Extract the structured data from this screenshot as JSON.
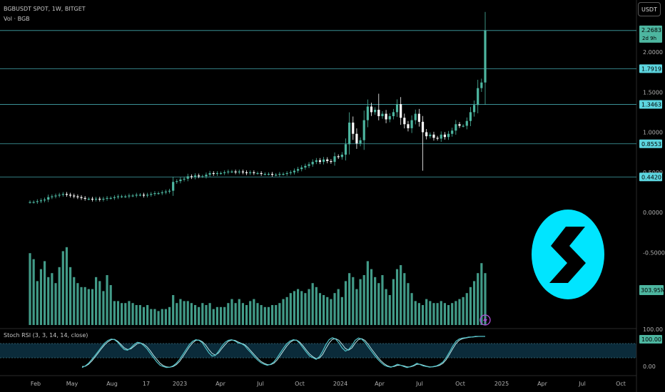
{
  "header": {
    "symbol_line": "BGBUSDT SPOT, 1W, BITGET",
    "volume_label": "Vol · BGB",
    "currency_button": "USDT"
  },
  "colors": {
    "background": "#000000",
    "up": "#4db6a0",
    "down": "#ffffff",
    "volume": "#4db6a0",
    "level_line": "#4fc3c9",
    "price_tag": "#5dd6e0",
    "stoch_k": "#4fc3c9",
    "stoch_d": "#b8e6ea",
    "logo": "#00e5ff",
    "axis_text": "#b0b0b0"
  },
  "logo": {
    "icon": "bitget-logo-icon"
  },
  "stoch_rsi_label": "Stoch RSI (3, 3, 14, 14, close)",
  "price_axis": {
    "ticks": [
      "2.0000",
      "1.5000",
      "1.0000",
      "0.5000",
      "0.0000",
      "-0.5000"
    ],
    "current_price": "2.2683",
    "countdown": "2d 9h",
    "volume_tag": "303.95M",
    "stoch_ticks": [
      "100.00",
      "0.00"
    ],
    "stoch_current": "100.00"
  },
  "time_axis": [
    "Feb",
    "May",
    "Aug",
    "17",
    "2023",
    "Apr",
    "Jul",
    "Oct",
    "2024",
    "Apr",
    "Jul",
    "Oct",
    "2025",
    "Apr",
    "Jul",
    "Oct"
  ],
  "chart_data": {
    "type": "candlestick",
    "interval": "1W",
    "price_range": [
      -0.5,
      2.5
    ],
    "horizontal_levels": [
      {
        "label": "2.2683",
        "value": 2.2683
      },
      {
        "label": "1.7919",
        "value": 1.7919
      },
      {
        "label": "1.3463",
        "value": 1.3463
      },
      {
        "label": "0.8553",
        "value": 0.8553
      },
      {
        "label": "0.4420",
        "value": 0.442
      }
    ],
    "close": [
      0.13,
      0.13,
      0.14,
      0.15,
      0.16,
      0.19,
      0.2,
      0.21,
      0.22,
      0.23,
      0.22,
      0.21,
      0.2,
      0.19,
      0.18,
      0.17,
      0.17,
      0.16,
      0.17,
      0.16,
      0.17,
      0.18,
      0.18,
      0.19,
      0.2,
      0.2,
      0.2,
      0.21,
      0.21,
      0.22,
      0.22,
      0.21,
      0.22,
      0.23,
      0.24,
      0.24,
      0.25,
      0.26,
      0.27,
      0.38,
      0.39,
      0.41,
      0.42,
      0.45,
      0.44,
      0.46,
      0.45,
      0.45,
      0.47,
      0.49,
      0.48,
      0.49,
      0.49,
      0.5,
      0.51,
      0.51,
      0.5,
      0.51,
      0.5,
      0.49,
      0.5,
      0.49,
      0.49,
      0.48,
      0.48,
      0.48,
      0.47,
      0.47,
      0.48,
      0.48,
      0.49,
      0.5,
      0.52,
      0.54,
      0.56,
      0.58,
      0.6,
      0.63,
      0.65,
      0.63,
      0.66,
      0.64,
      0.63,
      0.7,
      0.69,
      0.72,
      0.85,
      1.12,
      0.98,
      0.86,
      0.9,
      1.15,
      1.32,
      1.25,
      1.28,
      1.2,
      1.23,
      1.16,
      1.2,
      1.25,
      1.35,
      1.18,
      1.1,
      1.05,
      1.15,
      1.23,
      1.13,
      1.0,
      0.95,
      0.97,
      0.93,
      0.92,
      0.97,
      0.94,
      0.98,
      1.02,
      1.1,
      1.08,
      1.08,
      1.14,
      1.25,
      1.34,
      1.55,
      1.62,
      2.2683
    ],
    "volume_m": [
      3.6,
      3.3,
      2.2,
      2.8,
      3.2,
      2.4,
      2.6,
      2.1,
      2.9,
      3.7,
      3.9,
      2.9,
      2.4,
      2.1,
      1.9,
      1.9,
      1.8,
      1.8,
      2.4,
      2.2,
      1.7,
      2.5,
      2.0,
      1.2,
      1.2,
      1.1,
      1.1,
      1.2,
      1.1,
      1.0,
      1.0,
      0.9,
      1.0,
      0.8,
      0.8,
      0.7,
      0.8,
      0.8,
      0.9,
      1.5,
      1.1,
      1.3,
      1.2,
      1.2,
      1.1,
      1.0,
      0.9,
      1.1,
      1.0,
      1.1,
      0.8,
      0.9,
      0.9,
      0.9,
      1.1,
      1.3,
      1.1,
      1.3,
      1.1,
      1.0,
      1.2,
      1.3,
      1.1,
      1.0,
      0.9,
      0.9,
      1.0,
      1.0,
      1.1,
      1.3,
      1.4,
      1.6,
      1.7,
      1.8,
      1.7,
      1.6,
      1.8,
      2.1,
      1.9,
      1.6,
      1.5,
      1.4,
      1.3,
      1.6,
      1.8,
      1.4,
      2.2,
      2.6,
      2.4,
      1.8,
      2.3,
      2.5,
      3.2,
      2.8,
      2.4,
      2.1,
      2.5,
      1.8,
      1.5,
      2.3,
      2.8,
      3.0,
      2.6,
      2.1,
      1.6,
      1.2,
      1.1,
      1.0,
      1.3,
      1.2,
      1.1,
      1.1,
      1.2,
      1.1,
      1.0,
      1.1,
      1.2,
      1.3,
      1.4,
      1.6,
      1.9,
      2.2,
      2.6,
      3.1,
      2.6
    ],
    "stoch_k": [
      5,
      10,
      18,
      30,
      42,
      55,
      68,
      80,
      88,
      92,
      90,
      82,
      70,
      60,
      58,
      65,
      75,
      82,
      80,
      72,
      62,
      48,
      35,
      22,
      12,
      8,
      5,
      6,
      10,
      18,
      30,
      45,
      60,
      75,
      85,
      90,
      88,
      80,
      65,
      50,
      40,
      42,
      55,
      70,
      82,
      88,
      90,
      86,
      80,
      78,
      72,
      60,
      50,
      38,
      28,
      20,
      15,
      12,
      15,
      22,
      35,
      50,
      65,
      78,
      86,
      90,
      88,
      78,
      65,
      52,
      40,
      35,
      30,
      38,
      55,
      75,
      90,
      96,
      92,
      80,
      65,
      55,
      60,
      72,
      88,
      95,
      92,
      82,
      68,
      55,
      42,
      30,
      20,
      12,
      8,
      6,
      10,
      15,
      12,
      8,
      5,
      8,
      12,
      18,
      14,
      10,
      8,
      6,
      8,
      10,
      15,
      22,
      35,
      52,
      70,
      85,
      92,
      95,
      96,
      98,
      98,
      100,
      100,
      100,
      100
    ],
    "stoch_d": [
      8,
      9,
      15,
      25,
      37,
      50,
      63,
      75,
      84,
      90,
      91,
      85,
      75,
      65,
      60,
      62,
      70,
      78,
      80,
      76,
      68,
      56,
      42,
      30,
      18,
      11,
      7,
      6,
      8,
      14,
      24,
      38,
      53,
      68,
      80,
      88,
      89,
      84,
      74,
      60,
      48,
      43,
      50,
      63,
      75,
      85,
      89,
      88,
      83,
      79,
      75,
      66,
      55,
      44,
      33,
      24,
      18,
      14,
      14,
      18,
      28,
      42,
      57,
      71,
      82,
      88,
      89,
      82,
      71,
      58,
      46,
      38,
      32,
      34,
      45,
      63,
      80,
      91,
      93,
      88,
      76,
      63,
      58,
      65,
      79,
      90,
      93,
      88,
      76,
      62,
      49,
      36,
      25,
      16,
      10,
      7,
      8,
      12,
      12,
      10,
      7,
      7,
      10,
      15,
      15,
      12,
      9,
      7,
      7,
      9,
      12,
      18,
      29,
      45,
      62,
      78,
      88,
      93,
      95,
      97,
      98,
      99,
      100,
      100,
      100
    ]
  }
}
